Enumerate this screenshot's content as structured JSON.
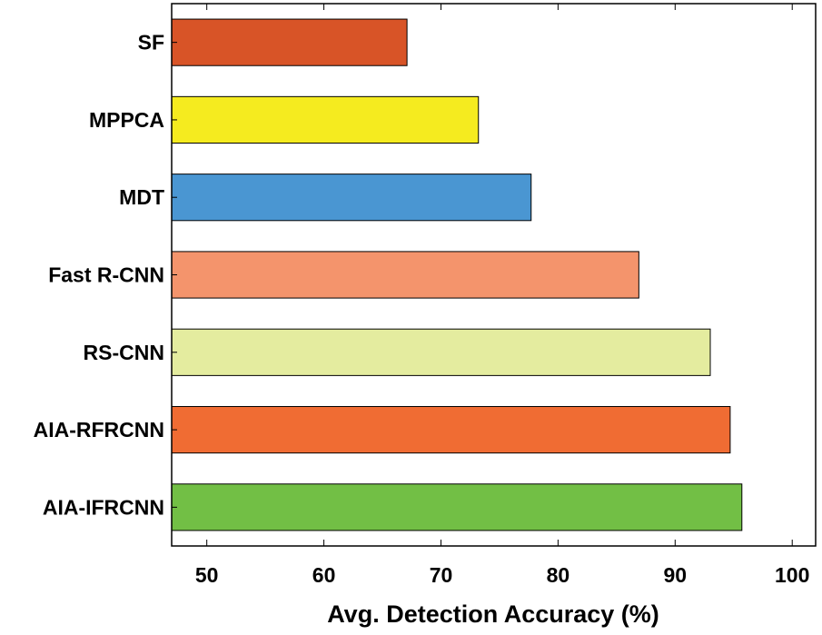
{
  "chart_data": {
    "type": "bar",
    "orientation": "horizontal",
    "title": "",
    "xlabel": "Avg. Detection Accuracy (%)",
    "ylabel": "",
    "xlim": [
      47,
      102
    ],
    "xticks": [
      50,
      60,
      70,
      80,
      90,
      100
    ],
    "grid": false,
    "categories": [
      "SF",
      "MPPCA",
      "MDT",
      "Fast R-CNN",
      "RS-CNN",
      "AIA-RFRCNN",
      "AIA-IFRCNN"
    ],
    "values": [
      67.1,
      73.2,
      77.7,
      86.9,
      93.0,
      94.7,
      95.7
    ],
    "colors": [
      "#d85427",
      "#f5eb1f",
      "#4a96d2",
      "#f4946c",
      "#e4ec9f",
      "#f06c33",
      "#72bf45"
    ]
  }
}
